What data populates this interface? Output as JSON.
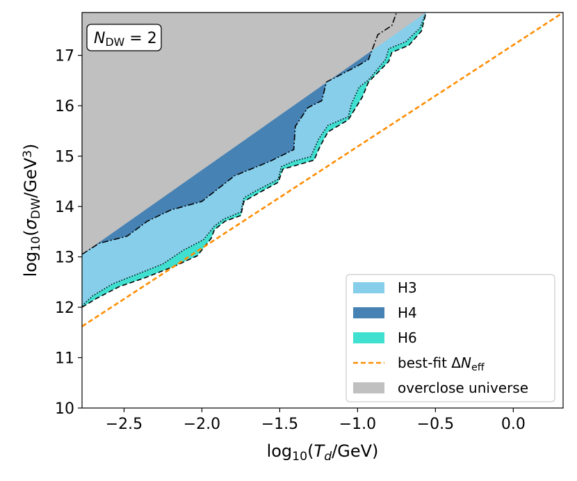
{
  "chart_data": {
    "type": "area",
    "xlim": [
      -2.77,
      0.32
    ],
    "ylim": [
      10,
      17.85
    ],
    "xticks": [
      {
        "value": -2.5,
        "label": "−2.5"
      },
      {
        "value": -2.0,
        "label": "−2.0"
      },
      {
        "value": -1.5,
        "label": "−1.5"
      },
      {
        "value": -1.0,
        "label": "−1.0"
      },
      {
        "value": -0.5,
        "label": "−0.5"
      },
      {
        "value": 0.0,
        "label": "0.0"
      }
    ],
    "yticks": [
      10,
      11,
      12,
      13,
      14,
      15,
      16,
      17
    ],
    "xlabel": [
      {
        "t": "log"
      },
      {
        "t": "10",
        "pos": "sub"
      },
      {
        "t": "("
      },
      {
        "t": "T",
        "style": "italic"
      },
      {
        "t": "d",
        "pos": "sub",
        "style": "italic"
      },
      {
        "t": "/GeV)"
      }
    ],
    "ylabel": [
      {
        "t": "log"
      },
      {
        "t": "10",
        "pos": "sub"
      },
      {
        "t": "("
      },
      {
        "t": "σ",
        "style": "italic"
      },
      {
        "t": "DW",
        "pos": "sub"
      },
      {
        "t": "/GeV"
      },
      {
        "t": "3",
        "pos": "super"
      },
      {
        "t": ")"
      }
    ],
    "annotation": [
      {
        "t": "N",
        "style": "italic"
      },
      {
        "t": "DW",
        "pos": "sub"
      },
      {
        "t": " = 2"
      }
    ],
    "legend": "lower right",
    "series": [
      {
        "name": "H3",
        "kind": "area",
        "color": "#87ceeb",
        "linestyle": "dotted",
        "x": [
          -2.77,
          -2.7,
          -2.57,
          -2.42,
          -2.25,
          -2.12,
          -1.99,
          -1.92,
          -1.86,
          -1.75,
          -1.73,
          -1.66,
          -1.51,
          -1.49,
          -1.41,
          -1.3,
          -1.25,
          -1.19,
          -1.06,
          -1.04,
          -0.99,
          -0.93,
          -0.82,
          -0.8,
          -0.69,
          -0.6,
          -0.56
        ],
        "y": [
          12.03,
          12.23,
          12.47,
          12.65,
          12.86,
          13.13,
          13.34,
          13.61,
          13.75,
          13.89,
          14.17,
          14.3,
          14.54,
          14.79,
          14.9,
          14.99,
          15.34,
          15.61,
          15.78,
          16.03,
          16.37,
          16.51,
          16.92,
          17.13,
          17.27,
          17.54,
          17.85
        ]
      },
      {
        "name": "H4",
        "kind": "area",
        "color": "#4682b4",
        "linestyle": "dashdot",
        "x": [
          -2.77,
          -2.66,
          -2.48,
          -2.35,
          -2.2,
          -2.0,
          -1.79,
          -1.56,
          -1.41,
          -1.4,
          -1.32,
          -1.23,
          -1.2,
          -1.0,
          -0.93,
          -0.87,
          -0.78,
          -0.75
        ],
        "y": [
          13.05,
          13.27,
          13.41,
          13.71,
          13.93,
          14.1,
          14.61,
          14.9,
          15.13,
          15.59,
          15.96,
          16.1,
          16.47,
          16.79,
          16.92,
          17.41,
          17.59,
          17.85
        ]
      },
      {
        "name": "H6",
        "kind": "area",
        "color": "#40e0d0",
        "linestyle": "dashed",
        "x": [
          -2.77,
          -2.68,
          -2.53,
          -2.37,
          -2.18,
          -2.03,
          -1.94,
          -1.92,
          -1.85,
          -1.75,
          -1.73,
          -1.64,
          -1.51,
          -1.48,
          -1.38,
          -1.28,
          -1.24,
          -1.19,
          -1.06,
          -0.97,
          -0.93,
          -0.8,
          -0.78,
          -0.67,
          -0.59,
          -0.56
        ],
        "y": [
          12.0,
          12.17,
          12.41,
          12.58,
          12.81,
          13.02,
          13.37,
          13.54,
          13.71,
          13.82,
          14.1,
          14.26,
          14.48,
          14.74,
          14.83,
          14.92,
          15.2,
          15.48,
          15.72,
          16.17,
          16.47,
          16.88,
          17.06,
          17.2,
          17.48,
          17.85
        ]
      },
      {
        "name": [
          {
            "t": "best-fit Δ"
          },
          {
            "t": "N",
            "style": "italic"
          },
          {
            "t": "eff",
            "pos": "sub"
          }
        ],
        "kind": "line",
        "color": "#ff8c00",
        "linestyle": "dashed",
        "x": [
          -2.77,
          0.32
        ],
        "y": [
          11.62,
          17.85
        ]
      },
      {
        "name": "overclose universe",
        "kind": "area",
        "color": "#c0c0c0",
        "x": [
          -2.77,
          -0.56
        ],
        "y": [
          13.05,
          17.85
        ]
      }
    ]
  }
}
